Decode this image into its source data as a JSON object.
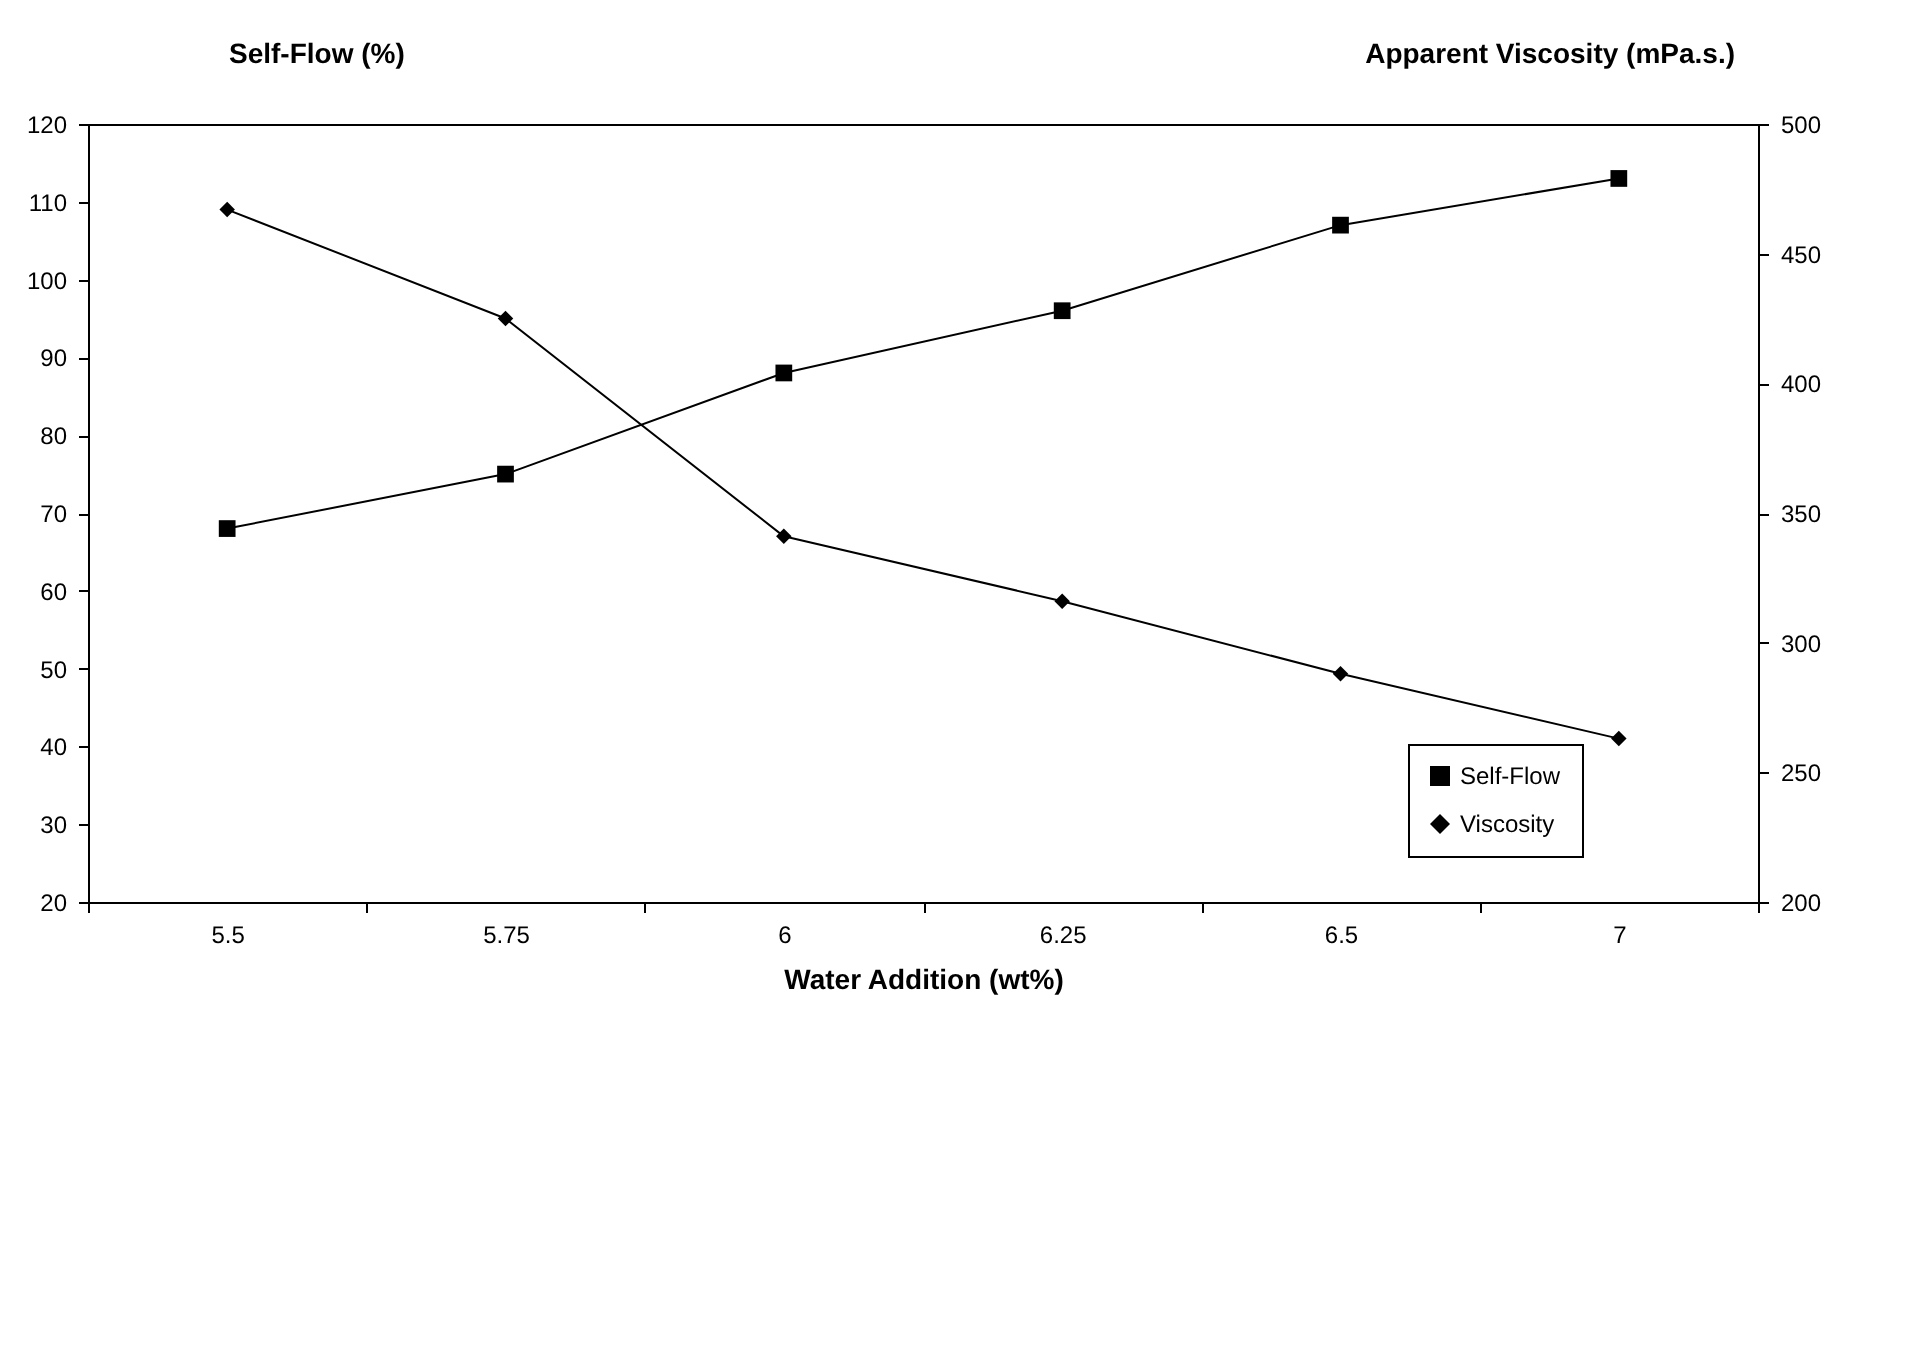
{
  "chart_data": {
    "type": "line",
    "xlabel": "Water Addition (wt%)",
    "ylabel": "Self-Flow (%)",
    "y2label": "Apparent Viscosity (mPa.s.)",
    "categories": [
      "5.5",
      "5.75",
      "6",
      "6.25",
      "6.5",
      "7"
    ],
    "series": [
      {
        "name": "Self-Flow",
        "color": "#000000",
        "marker": "square",
        "values": [
          68,
          75,
          88,
          96,
          107,
          113
        ]
      },
      {
        "name": "Viscosity",
        "color": "#000000",
        "marker": "diamond",
        "axis": "y2",
        "values": [
          467,
          425,
          341,
          316,
          288,
          263
        ]
      }
    ],
    "ylim": [
      20,
      120
    ],
    "yticks": [
      20,
      30,
      40,
      50,
      60,
      70,
      80,
      90,
      100,
      110,
      120
    ],
    "y2lim": [
      200,
      500
    ],
    "y2ticks": [
      200,
      250,
      300,
      350,
      400,
      450,
      500
    ],
    "grid": false,
    "legend": "bottom right"
  }
}
